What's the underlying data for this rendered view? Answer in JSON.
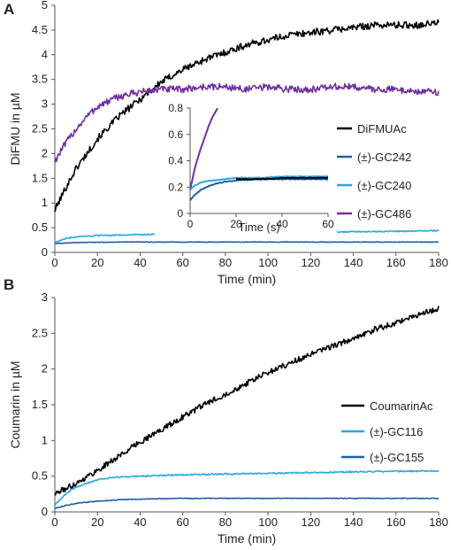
{
  "chart_data": [
    {
      "panel": "A",
      "type": "line",
      "xlabel": "Time (min)",
      "ylabel": "DiFMU in µM",
      "xlim": [
        0,
        180
      ],
      "ylim": [
        0,
        5
      ],
      "xticks": [
        "0",
        "20",
        "40",
        "60",
        "80",
        "100",
        "120",
        "140",
        "160",
        "180"
      ],
      "yticks": [
        "0",
        "0.5",
        "1",
        "1.5",
        "2",
        "2.5",
        "3",
        "3.5",
        "4",
        "4.5",
        "5"
      ],
      "grid": false,
      "legend_position": "right",
      "series": [
        {
          "name": "DiFMUAc",
          "color": "#000000",
          "x": [
            0,
            5,
            10,
            15,
            20,
            30,
            40,
            50,
            60,
            70,
            80,
            90,
            100,
            110,
            120,
            130,
            140,
            150,
            160,
            170,
            180
          ],
          "y": [
            0.85,
            1.3,
            1.7,
            2.0,
            2.3,
            2.75,
            3.1,
            3.45,
            3.7,
            3.9,
            4.05,
            4.2,
            4.3,
            4.4,
            4.45,
            4.5,
            4.55,
            4.6,
            4.6,
            4.6,
            4.65
          ]
        },
        {
          "name": "(±)-GC242",
          "color": "#1f5fa8",
          "x": [
            0,
            10,
            30,
            60,
            90,
            120,
            150,
            180
          ],
          "y": [
            0.18,
            0.2,
            0.21,
            0.21,
            0.21,
            0.21,
            0.21,
            0.21
          ]
        },
        {
          "name": "(±)-GC240",
          "color": "#29a8e0",
          "x": [
            0,
            5,
            10,
            20,
            40,
            60,
            90,
            120,
            150,
            180
          ],
          "y": [
            0.2,
            0.28,
            0.31,
            0.34,
            0.36,
            0.38,
            0.4,
            0.41,
            0.42,
            0.44
          ]
        },
        {
          "name": "(±)-GC486",
          "color": "#7030a0",
          "x": [
            0,
            5,
            10,
            15,
            20,
            30,
            40,
            50,
            60,
            70,
            80,
            90,
            100,
            110,
            120,
            130,
            140,
            150,
            160,
            170,
            180
          ],
          "y": [
            1.85,
            2.2,
            2.5,
            2.75,
            2.95,
            3.15,
            3.25,
            3.3,
            3.3,
            3.35,
            3.35,
            3.3,
            3.35,
            3.3,
            3.3,
            3.35,
            3.35,
            3.3,
            3.3,
            3.25,
            3.25
          ]
        }
      ],
      "inset": {
        "type": "line",
        "xlabel": "Time (s)",
        "xlim": [
          0,
          60
        ],
        "ylim": [
          0,
          0.8
        ],
        "xticks": [
          "0",
          "20",
          "40",
          "60"
        ],
        "yticks": [
          "0",
          "0.2",
          "0.4",
          "0.6",
          "0.8"
        ],
        "series": [
          {
            "name": "(±)-GC486",
            "color": "#7030a0",
            "x": [
              0,
              2,
              4,
              6,
              8,
              10,
              12
            ],
            "y": [
              0.18,
              0.34,
              0.46,
              0.56,
              0.66,
              0.74,
              0.8
            ]
          },
          {
            "name": "(±)-GC240",
            "color": "#29a8e0",
            "x": [
              0,
              2,
              4,
              6,
              10,
              15,
              20,
              30,
              40,
              50,
              60
            ],
            "y": [
              0.18,
              0.21,
              0.23,
              0.24,
              0.25,
              0.26,
              0.27,
              0.27,
              0.28,
              0.28,
              0.28
            ]
          },
          {
            "name": "(±)-GC242",
            "color": "#1f5fa8",
            "x": [
              0,
              2,
              4,
              6,
              10,
              15,
              20,
              30,
              40,
              50,
              60
            ],
            "y": [
              0.1,
              0.14,
              0.17,
              0.19,
              0.22,
              0.24,
              0.25,
              0.26,
              0.26,
              0.26,
              0.26
            ]
          },
          {
            "name": "DiFMUAc",
            "color": "#000000",
            "x": [
              20,
              30,
              40,
              50,
              60
            ],
            "y": [
              0.26,
              0.26,
              0.27,
              0.27,
              0.27
            ]
          }
        ]
      }
    },
    {
      "panel": "B",
      "type": "line",
      "xlabel": "Time (min)",
      "ylabel": "Coumarin in µM",
      "xlim": [
        0,
        180
      ],
      "ylim": [
        0,
        3
      ],
      "xticks": [
        "0",
        "20",
        "40",
        "60",
        "80",
        "100",
        "120",
        "140",
        "160",
        "180"
      ],
      "yticks": [
        "0",
        "0.5",
        "1",
        "1.5",
        "2",
        "2.5",
        "3"
      ],
      "grid": false,
      "legend_position": "right",
      "series": [
        {
          "name": "CoumarinAc",
          "color": "#000000",
          "x": [
            0,
            10,
            20,
            30,
            40,
            50,
            60,
            70,
            80,
            90,
            100,
            110,
            120,
            130,
            140,
            150,
            160,
            170,
            180
          ],
          "y": [
            0.25,
            0.4,
            0.58,
            0.78,
            0.98,
            1.15,
            1.33,
            1.5,
            1.65,
            1.8,
            1.95,
            2.08,
            2.2,
            2.32,
            2.42,
            2.55,
            2.65,
            2.75,
            2.85
          ]
        },
        {
          "name": "(±)-GC116",
          "color": "#29a8e0",
          "x": [
            0,
            5,
            10,
            20,
            30,
            40,
            60,
            80,
            100,
            120,
            140,
            160,
            180
          ],
          "y": [
            0.1,
            0.25,
            0.35,
            0.45,
            0.49,
            0.5,
            0.52,
            0.53,
            0.54,
            0.55,
            0.56,
            0.57,
            0.57
          ]
        },
        {
          "name": "(±)-GC155",
          "color": "#1f5fa8",
          "x": [
            0,
            5,
            10,
            20,
            30,
            40,
            60,
            90,
            120,
            150,
            180
          ],
          "y": [
            0.05,
            0.09,
            0.12,
            0.15,
            0.17,
            0.18,
            0.19,
            0.19,
            0.19,
            0.19,
            0.19
          ]
        }
      ]
    }
  ]
}
